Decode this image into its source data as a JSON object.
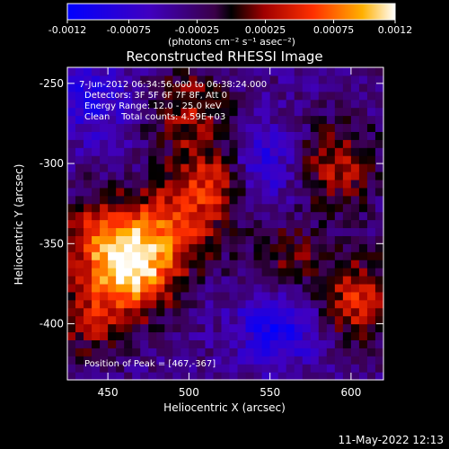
{
  "chart_data": {
    "type": "heatmap",
    "title": "Reconstructed RHESSI Image",
    "xlabel": "Heliocentric X (arcsec)",
    "ylabel": "Heliocentric Y (arcsec)",
    "xlim": [
      425,
      620
    ],
    "ylim": [
      -435,
      -240
    ],
    "x_ticks": [
      "450",
      "500",
      "550",
      "600"
    ],
    "y_ticks": [
      "-250",
      "-300",
      "-350",
      "-400"
    ],
    "colorbar": {
      "ticks": [
        "-0.0012",
        "-0.00075",
        "-0.00025",
        "0.00025",
        "0.00075",
        "0.0012"
      ],
      "range": [
        -0.0012,
        0.0012
      ],
      "units_label": "(photons cm⁻² s⁻¹ asec⁻²)"
    },
    "info_lines": [
      "7-Jun-2012 06:34:56.000 to 06:38:24.000",
      "Detectors: 3F 5F 6F 7F 8F, Att 0",
      "Energy Range: 12.0 - 25.0 keV",
      "Clean    Total counts: 4.59E+03"
    ],
    "peak_label": "Position of Peak = [467,-367]",
    "sources": [
      {
        "x": 467,
        "y": -367,
        "amp": 0.0012
      },
      {
        "x": 448,
        "y": -345,
        "amp": 0.0009
      },
      {
        "x": 490,
        "y": -340,
        "amp": 0.00075
      },
      {
        "x": 515,
        "y": -310,
        "amp": 0.0008
      },
      {
        "x": 500,
        "y": -265,
        "amp": 0.0006
      },
      {
        "x": 590,
        "y": -300,
        "amp": 0.0007
      },
      {
        "x": 605,
        "y": -385,
        "amp": 0.0008
      },
      {
        "x": 560,
        "y": -360,
        "amp": 0.00045
      },
      {
        "x": 440,
        "y": -395,
        "amp": 0.0006
      },
      {
        "x": 545,
        "y": -300,
        "amp": -0.0006
      },
      {
        "x": 555,
        "y": -400,
        "amp": -0.0007
      },
      {
        "x": 440,
        "y": -260,
        "amp": -0.0005
      }
    ],
    "timestamp": "11-May-2022 12:13"
  }
}
